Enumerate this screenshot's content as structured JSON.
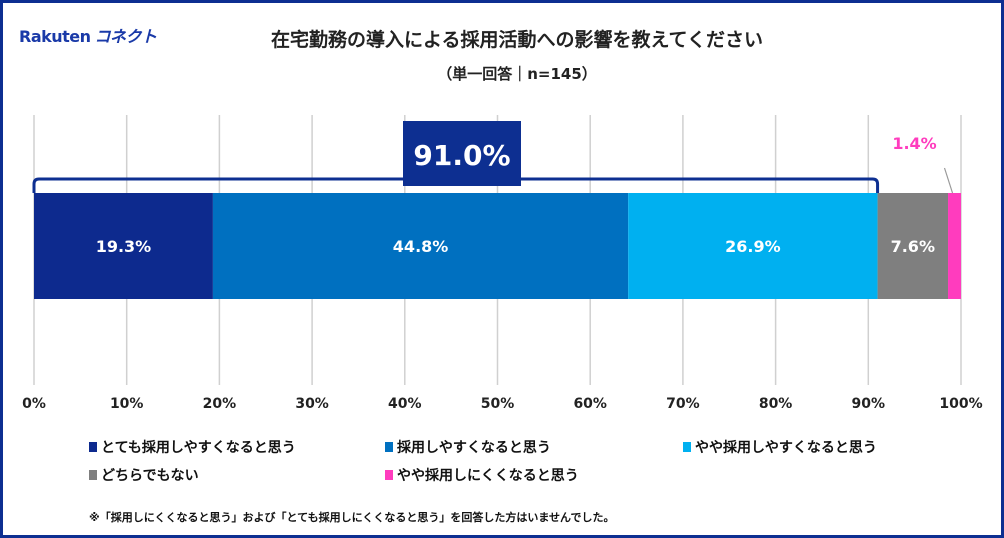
{
  "logo": {
    "brand": "Rakuten",
    "sub": "コネクト"
  },
  "chart_data": {
    "type": "bar",
    "orientation": "horizontal-stacked-100",
    "title": "在宅勤務の導入による採用活動への影響を教えてください",
    "subtitle": "（単一回答｜n=145）",
    "xlim": [
      0,
      100
    ],
    "xticks": [
      "0%",
      "10%",
      "20%",
      "30%",
      "40%",
      "50%",
      "60%",
      "70%",
      "80%",
      "90%",
      "100%"
    ],
    "grid": true,
    "legend_position": "bottom",
    "series": [
      {
        "name": "とても採用しやすくなると思う",
        "value": 19.3,
        "label": "19.3%",
        "color": "#0d2a8e"
      },
      {
        "name": "採用しやすくなると思う",
        "value": 44.8,
        "label": "44.8%",
        "color": "#0070c0"
      },
      {
        "name": "やや採用しやすくなると思う",
        "value": 26.9,
        "label": "26.9%",
        "color": "#00b0f0"
      },
      {
        "name": "どちらでもない",
        "value": 7.6,
        "label": "7.6%",
        "color": "#7f7f7f"
      },
      {
        "name": "やや採用しにくくなると思う",
        "value": 1.4,
        "label": "1.4%",
        "color": "#ff3cbe"
      }
    ],
    "bracket": {
      "label": "91.0%",
      "from": 0,
      "to": 91.0,
      "color": "#0d2f91"
    },
    "note": "※「採用しにくくなると思う」および「とても採用しにくくなると思う」を回答した方はいませんでした。"
  }
}
